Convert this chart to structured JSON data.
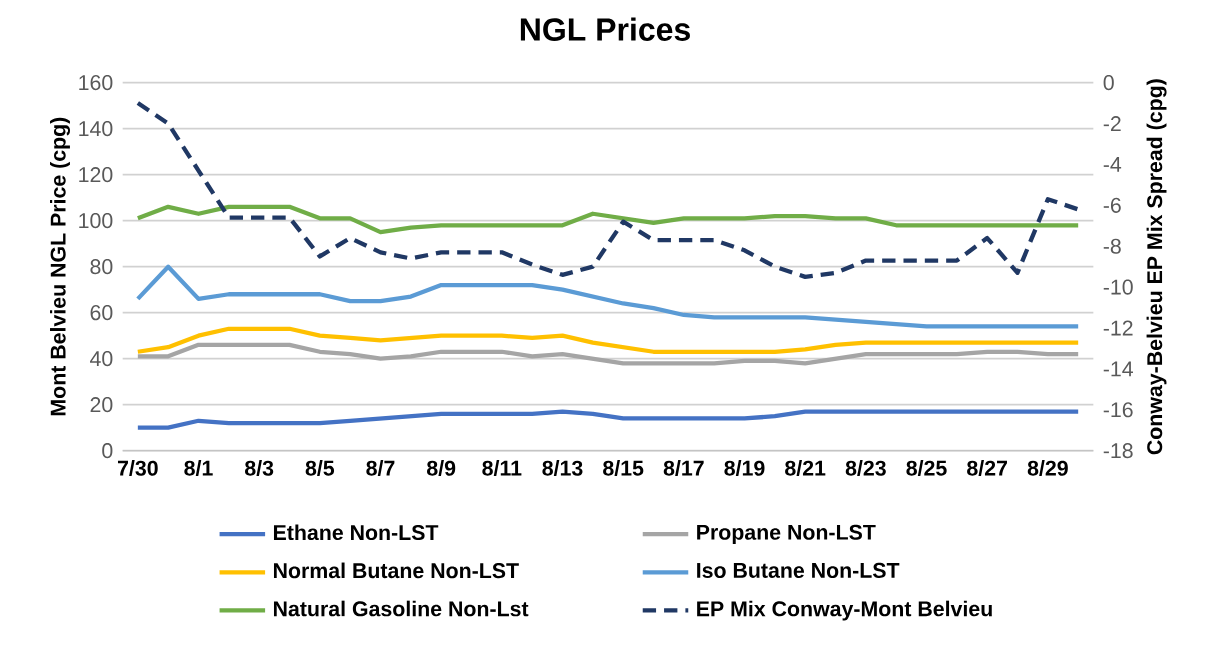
{
  "chart_data": {
    "type": "line",
    "title": "NGL Prices",
    "ylabel": "Mont Belvieu NGL Price (cpg)",
    "y2label": "Conway-Belvieu EP Mix Spread (cpg)",
    "categories": [
      "7/30",
      null,
      "8/1",
      null,
      "8/3",
      null,
      "8/5",
      null,
      "8/7",
      null,
      "8/9",
      null,
      "8/11",
      null,
      "8/13",
      null,
      "8/15",
      null,
      "8/17",
      null,
      "8/19",
      null,
      "8/21",
      null,
      "8/23",
      null,
      "8/25",
      null,
      "8/27",
      null,
      "8/29",
      null
    ],
    "series": [
      {
        "name": "Ethane Non-LST",
        "color": "#4472c4",
        "values": [
          10,
          10,
          13,
          12,
          12,
          12,
          12,
          13,
          14,
          15,
          16,
          16,
          16,
          16,
          17,
          16,
          14,
          14,
          14,
          14,
          14,
          15,
          17,
          17,
          17,
          17,
          17,
          17,
          17,
          17,
          17,
          17
        ]
      },
      {
        "name": "Propane Non-LST",
        "color": "#a5a5a5",
        "values": [
          41,
          41,
          46,
          46,
          46,
          46,
          43,
          42,
          40,
          41,
          43,
          43,
          43,
          41,
          42,
          40,
          38,
          38,
          38,
          38,
          39,
          39,
          38,
          40,
          42,
          42,
          42,
          42,
          43,
          43,
          42,
          42
        ]
      },
      {
        "name": "Normal Butane Non-LST",
        "color": "#ffc000",
        "values": [
          43,
          45,
          50,
          53,
          53,
          53,
          50,
          49,
          48,
          49,
          50,
          50,
          50,
          49,
          50,
          47,
          45,
          43,
          43,
          43,
          43,
          43,
          44,
          46,
          47,
          47,
          47,
          47,
          47,
          47,
          47,
          47
        ]
      },
      {
        "name": "Iso Butane Non-LST",
        "color": "#5b9bd5",
        "values": [
          66,
          80,
          66,
          68,
          68,
          68,
          68,
          65,
          65,
          67,
          72,
          72,
          72,
          72,
          70,
          67,
          64,
          62,
          59,
          58,
          58,
          58,
          58,
          57,
          56,
          55,
          54,
          54,
          54,
          54,
          54,
          54
        ]
      },
      {
        "name": "Natural Gasoline Non-Lst",
        "color": "#70ad47",
        "values": [
          101,
          106,
          103,
          106,
          106,
          106,
          101,
          101,
          95,
          97,
          98,
          98,
          98,
          98,
          98,
          103,
          101,
          99,
          101,
          101,
          101,
          102,
          102,
          101,
          101,
          98,
          98,
          98,
          98,
          98,
          98,
          98
        ]
      },
      {
        "name": "EP Mix Conway-Mont Belvieu",
        "color": "#203864",
        "axis": "y2",
        "line_style": "dashed",
        "values": [
          -1.0,
          -2.0,
          -4.3,
          -6.6,
          -6.6,
          -6.6,
          -8.5,
          -7.6,
          -8.3,
          -8.6,
          -8.3,
          -8.3,
          -8.3,
          -8.9,
          -9.4,
          -9.0,
          -6.8,
          -7.7,
          -7.7,
          -7.7,
          -8.2,
          -9.0,
          -9.5,
          -9.3,
          -8.7,
          -8.7,
          -8.7,
          -8.7,
          -7.6,
          -9.3,
          -5.7,
          -6.2
        ]
      }
    ],
    "ylim": [
      0,
      160
    ],
    "yticks": [
      0,
      20,
      40,
      60,
      80,
      100,
      120,
      140,
      160
    ],
    "y2lim": [
      -18,
      0
    ],
    "y2ticks": [
      -18,
      -16,
      -14,
      -12,
      -10,
      -8,
      -6,
      -4,
      -2,
      0
    ],
    "grid": "y",
    "legend": "bottom"
  }
}
